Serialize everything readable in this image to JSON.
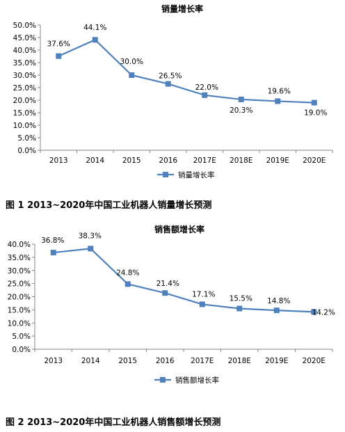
{
  "figures": [
    {
      "caption": "图 1  2013~2020年中国工业机器人销量增长预测",
      "chart_data": {
        "type": "line",
        "title": "销量增长率",
        "categories": [
          "2013",
          "2014",
          "2015",
          "2016",
          "2017E",
          "2018E",
          "2019E",
          "2020E"
        ],
        "series": [
          {
            "name": "销量增长率",
            "values": [
              37.6,
              44.1,
              30.0,
              26.5,
              22.0,
              20.3,
              19.6,
              19.0
            ],
            "labels": [
              "37.6%",
              "44.1%",
              "30.0%",
              "26.5%",
              "22.0%",
              "20.3%",
              "19.6%",
              "19.0%"
            ]
          }
        ],
        "ylim": [
          0,
          50
        ],
        "yticks": [
          "0.0%",
          "5.0%",
          "10.0%",
          "15.0%",
          "20.0%",
          "25.0%",
          "30.0%",
          "35.0%",
          "40.0%",
          "45.0%",
          "50.0%"
        ],
        "legend": "bottom-center",
        "grid": false,
        "color": "#4F81BD"
      }
    },
    {
      "caption": "图 2  2013~2020年中国工业机器人销售额增长预测",
      "chart_data": {
        "type": "line",
        "title": "销售额增长率",
        "categories": [
          "2013",
          "2014",
          "2015",
          "2016",
          "2017E",
          "2018E",
          "2019E",
          "2020E"
        ],
        "series": [
          {
            "name": "销售额增长率",
            "values": [
              36.8,
              38.3,
              24.8,
              21.4,
              17.1,
              15.5,
              14.8,
              14.2
            ],
            "labels": [
              "36.8%",
              "38.3%",
              "24.8%",
              "21.4%",
              "17.1%",
              "15.5%",
              "14.8%",
              "14.2%"
            ]
          }
        ],
        "ylim": [
          0,
          40
        ],
        "yticks": [
          "0.0%",
          "5.0%",
          "10.0%",
          "15.0%",
          "20.0%",
          "25.0%",
          "30.0%",
          "35.0%",
          "40.0%"
        ],
        "legend": "bottom-center",
        "grid": false,
        "color": "#4F81BD"
      }
    }
  ]
}
